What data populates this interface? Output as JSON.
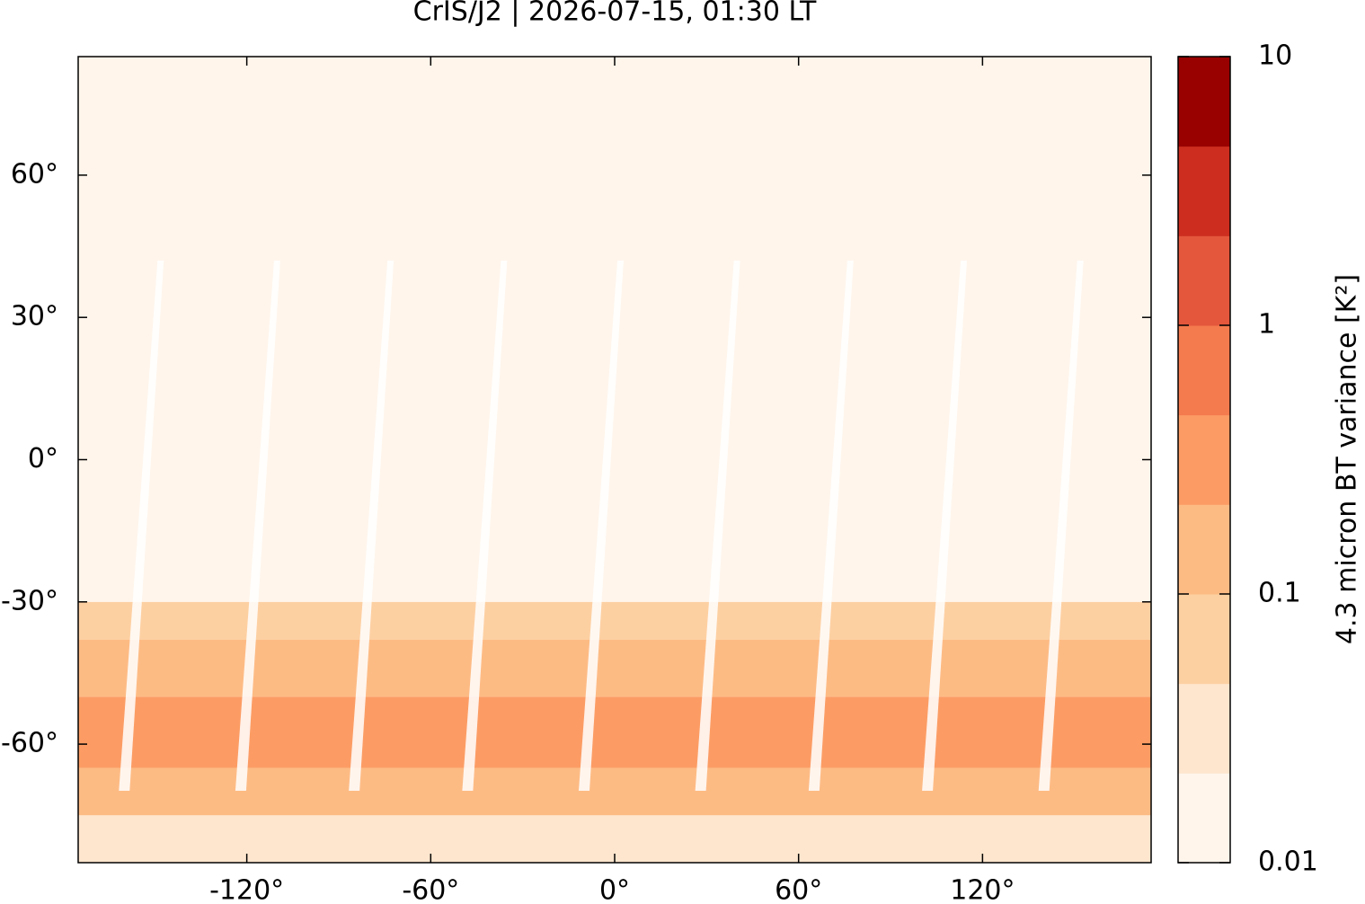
{
  "chart_data": {
    "type": "map",
    "title": "CrIS/J2 | 2026-07-15, 01:30 LT",
    "xlim": [
      -175,
      175
    ],
    "ylim": [
      -85,
      85
    ],
    "xticks": [
      {
        "value": -120,
        "label": "-120°"
      },
      {
        "value": -60,
        "label": "-60°"
      },
      {
        "value": 0,
        "label": "0°"
      },
      {
        "value": 60,
        "label": "60°"
      },
      {
        "value": 120,
        "label": "120°"
      }
    ],
    "yticks": [
      {
        "value": -60,
        "label": "-60°"
      },
      {
        "value": -30,
        "label": "-30°"
      },
      {
        "value": 0,
        "label": "0°"
      },
      {
        "value": 30,
        "label": "30°"
      },
      {
        "value": 60,
        "label": "60°"
      }
    ],
    "lat_bins": [
      -85,
      -75,
      -65,
      -50,
      -38,
      -30,
      85
    ],
    "values": [
      0.03,
      0.15,
      0.3,
      0.2,
      0.06,
      0.015
    ],
    "colorbar": {
      "label": "4.3 micron BT variance [K²]",
      "log": true,
      "clim": [
        0.01,
        10
      ],
      "cticks": [
        0.01,
        0.1,
        1,
        10
      ],
      "colors": [
        "#fff5eb",
        "#fee6ce",
        "#fdd0a2",
        "#fdbb84",
        "#fc9c64",
        "#f47b4e",
        "#e4573c",
        "#cc2d1f",
        "#990000"
      ]
    }
  }
}
